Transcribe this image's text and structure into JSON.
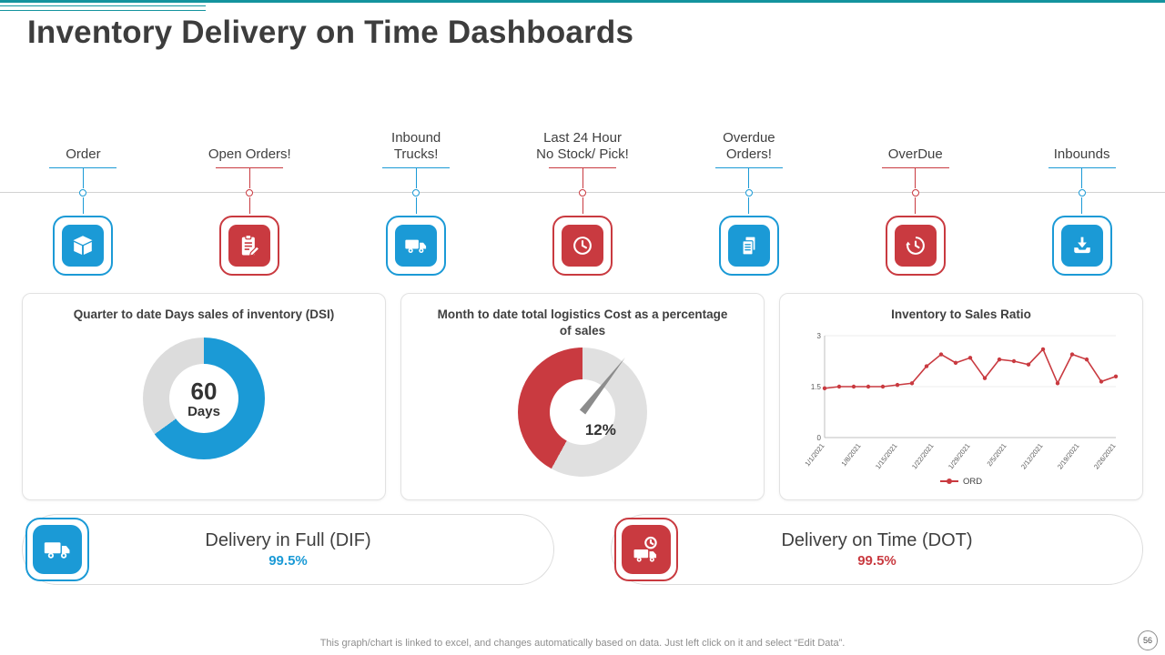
{
  "colors": {
    "blue": "#1b9ad6",
    "red": "#c93a40",
    "teal": "#14939e",
    "track_gray": "#dcdcdc"
  },
  "header": {
    "title": "Inventory Delivery on Time Dashboards"
  },
  "kpis": [
    {
      "label": "Order",
      "color": "blue",
      "icon": "package-icon"
    },
    {
      "label": "Open Orders!",
      "color": "red",
      "icon": "clipboard-edit-icon"
    },
    {
      "label": "Inbound\nTrucks!",
      "color": "blue",
      "icon": "truck-icon"
    },
    {
      "label": "Last 24 Hour\nNo Stock/ Pick!",
      "color": "red",
      "icon": "clock-icon"
    },
    {
      "label": "Overdue\nOrders!",
      "color": "blue",
      "icon": "documents-icon"
    },
    {
      "label": "OverDue",
      "color": "red",
      "icon": "history-clock-icon"
    },
    {
      "label": "Inbounds",
      "color": "blue",
      "icon": "download-icon"
    }
  ],
  "chart_data": [
    {
      "type": "pie",
      "title": "Quarter to date Days sales of inventory (DSI)",
      "center_value": "60",
      "center_unit": "Days",
      "slices": [
        {
          "label": "DSI progress",
          "value": 65,
          "color": "#1b9ad6"
        },
        {
          "label": "remainder",
          "value": 35,
          "color": "#dcdcdc"
        }
      ]
    },
    {
      "type": "pie",
      "title": "Month to date total logistics Cost as a percentage of sales",
      "value": 12,
      "value_label": "12%",
      "arc": {
        "track_pct": 58,
        "track_color": "#e0e0e0",
        "fill_color": "#c93a40"
      },
      "needle_deg": 38
    },
    {
      "type": "line",
      "title": "Inventory to Sales Ratio",
      "series": [
        {
          "name": "ORD",
          "color": "#c93a40",
          "values": [
            1.45,
            1.5,
            1.5,
            1.5,
            1.5,
            1.55,
            1.6,
            2.1,
            2.45,
            2.2,
            2.35,
            1.75,
            2.3,
            2.25,
            2.15,
            2.6,
            1.6,
            2.45,
            2.3,
            1.65,
            1.8
          ]
        }
      ],
      "x_tick_labels": [
        "1/1/2021",
        "1/8/2021",
        "1/15/2021",
        "1/22/2021",
        "1/29/2021",
        "2/5/2021",
        "2/12/2021",
        "2/19/2021",
        "2/26/2021"
      ],
      "ylim": [
        0,
        3
      ],
      "yticks": [
        0,
        1.5,
        3
      ],
      "grid": true,
      "legend_position": "bottom"
    }
  ],
  "metrics": [
    {
      "label": "Delivery in Full (DIF)",
      "value": "99.5%",
      "color": "blue",
      "icon": "truck-icon"
    },
    {
      "label": "Delivery on Time (DOT)",
      "value": "99.5%",
      "color": "red",
      "icon": "truck-clock-icon"
    }
  ],
  "footer": {
    "note": "This graph/chart is linked to excel, and changes automatically based on data. Just left click on it and select “Edit Data”.",
    "page_number": "56"
  }
}
